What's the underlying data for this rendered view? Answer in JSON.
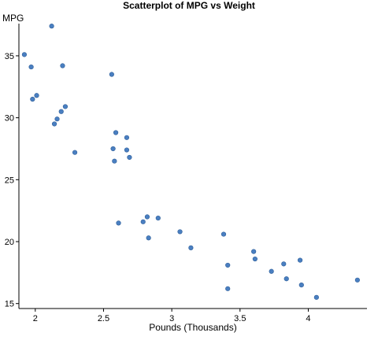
{
  "chart_data": {
    "type": "scatter",
    "title": "Scatterplot of MPG vs Weight",
    "xlabel": "Pounds (Thousands)",
    "ylabel": "MPG",
    "xlim": [
      1.88,
      4.43
    ],
    "ylim": [
      14.6,
      37.6
    ],
    "xticks": [
      2,
      2.5,
      3,
      3.5,
      4
    ],
    "xtick_labels": [
      "2",
      "2.5",
      "3",
      "3.5",
      "4"
    ],
    "yticks": [
      15,
      20,
      25,
      30,
      35
    ],
    "ytick_labels": [
      "15",
      "20",
      "25",
      "30",
      "35"
    ],
    "grid": false,
    "legend": "none",
    "marker_color": "#4a7fc1",
    "x": [
      1.92,
      1.97,
      1.98,
      2.01,
      2.12,
      2.14,
      2.16,
      2.19,
      2.2,
      2.22,
      2.29,
      2.56,
      2.57,
      2.58,
      2.59,
      2.61,
      2.67,
      2.67,
      2.69,
      2.79,
      2.82,
      2.83,
      2.9,
      3.06,
      3.14,
      3.38,
      3.41,
      3.41,
      3.6,
      3.61,
      3.73,
      3.82,
      3.84,
      3.94,
      3.95,
      4.06,
      4.36
    ],
    "y": [
      35.1,
      34.1,
      31.5,
      31.8,
      37.4,
      29.5,
      29.9,
      30.5,
      34.2,
      30.9,
      27.2,
      33.5,
      27.5,
      26.5,
      28.8,
      21.5,
      28.4,
      27.4,
      26.8,
      21.6,
      22.0,
      20.3,
      21.9,
      20.8,
      19.5,
      20.6,
      18.1,
      16.2,
      19.2,
      18.6,
      17.6,
      18.2,
      17.0,
      18.5,
      16.5,
      15.5,
      16.9
    ]
  }
}
